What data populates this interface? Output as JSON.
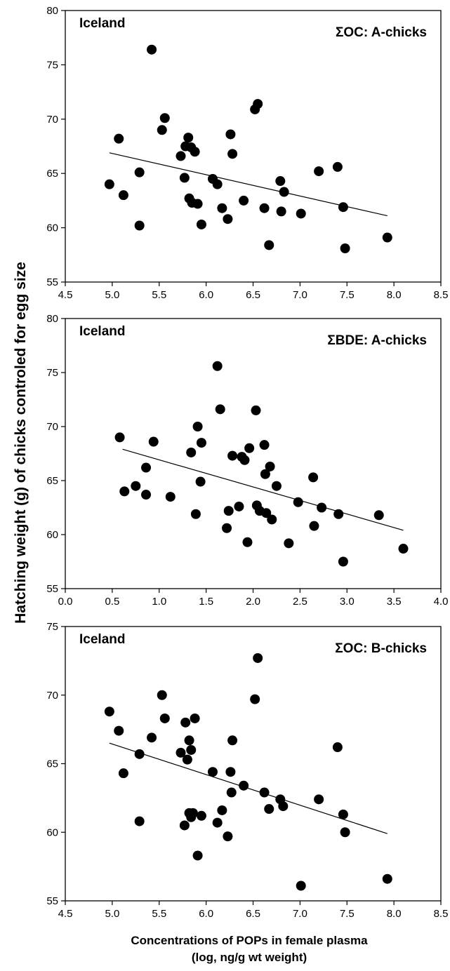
{
  "figure": {
    "ylabel": "Hatching weight (g) of chicks controled for egg size",
    "xlabel_line1": "Concentrations of POPs in female plasma",
    "xlabel_line2": "(log, ng/g wt weight)"
  },
  "chart_data": [
    {
      "type": "scatter",
      "location": "Iceland",
      "annotation": "ΣOC: A-chicks",
      "xlim": [
        4.5,
        8.5
      ],
      "ylim": [
        55,
        80
      ],
      "xticks": [
        "4.5",
        "5.0",
        "5.5",
        "6.0",
        "6.5",
        "7.0",
        "7.5",
        "8.0",
        "8.5"
      ],
      "yticks": [
        "55",
        "60",
        "65",
        "70",
        "75",
        "80"
      ],
      "fit_line": [
        [
          4.97,
          66.9
        ],
        [
          7.93,
          61.1
        ]
      ],
      "points": [
        [
          4.97,
          64.0
        ],
        [
          5.07,
          68.2
        ],
        [
          5.12,
          63.0
        ],
        [
          5.29,
          65.1
        ],
        [
          5.29,
          60.2
        ],
        [
          5.42,
          76.4
        ],
        [
          5.53,
          69.0
        ],
        [
          5.56,
          70.1
        ],
        [
          5.73,
          66.6
        ],
        [
          5.77,
          64.6
        ],
        [
          5.78,
          67.5
        ],
        [
          5.81,
          68.3
        ],
        [
          5.82,
          62.7
        ],
        [
          5.84,
          67.4
        ],
        [
          5.85,
          62.3
        ],
        [
          5.88,
          67.0
        ],
        [
          5.91,
          62.2
        ],
        [
          5.95,
          60.3
        ],
        [
          6.07,
          64.5
        ],
        [
          6.12,
          64.0
        ],
        [
          6.17,
          61.8
        ],
        [
          6.23,
          60.8
        ],
        [
          6.26,
          68.6
        ],
        [
          6.28,
          66.8
        ],
        [
          6.4,
          62.5
        ],
        [
          6.52,
          70.9
        ],
        [
          6.55,
          71.4
        ],
        [
          6.62,
          61.8
        ],
        [
          6.67,
          58.4
        ],
        [
          6.79,
          64.3
        ],
        [
          6.8,
          61.5
        ],
        [
          6.83,
          63.3
        ],
        [
          7.01,
          61.3
        ],
        [
          7.2,
          65.2
        ],
        [
          7.4,
          65.6
        ],
        [
          7.46,
          61.9
        ],
        [
          7.48,
          58.1
        ],
        [
          7.93,
          59.1
        ]
      ]
    },
    {
      "type": "scatter",
      "location": "Iceland",
      "annotation": "ΣBDE: A-chicks",
      "xlim": [
        0.0,
        4.0
      ],
      "ylim": [
        55,
        80
      ],
      "xticks": [
        "0.0",
        "0.5",
        "1.0",
        "1.5",
        "2.0",
        "2.5",
        "3.0",
        "3.5",
        "4.0"
      ],
      "yticks": [
        "55",
        "60",
        "65",
        "70",
        "75",
        "80"
      ],
      "fit_line": [
        [
          0.61,
          67.9
        ],
        [
          3.6,
          60.4
        ]
      ],
      "points": [
        [
          0.58,
          69.0
        ],
        [
          0.63,
          64.0
        ],
        [
          0.75,
          64.5
        ],
        [
          0.86,
          63.7
        ],
        [
          0.86,
          66.2
        ],
        [
          0.94,
          68.6
        ],
        [
          1.12,
          63.5
        ],
        [
          1.34,
          67.6
        ],
        [
          1.39,
          61.9
        ],
        [
          1.41,
          70.0
        ],
        [
          1.44,
          64.9
        ],
        [
          1.45,
          68.5
        ],
        [
          1.62,
          75.6
        ],
        [
          1.65,
          71.6
        ],
        [
          1.72,
          60.6
        ],
        [
          1.74,
          62.2
        ],
        [
          1.78,
          67.3
        ],
        [
          1.85,
          62.6
        ],
        [
          1.88,
          67.2
        ],
        [
          1.91,
          66.9
        ],
        [
          1.94,
          59.3
        ],
        [
          1.96,
          68.0
        ],
        [
          2.03,
          71.5
        ],
        [
          2.04,
          62.7
        ],
        [
          2.07,
          62.2
        ],
        [
          2.12,
          68.3
        ],
        [
          2.13,
          65.6
        ],
        [
          2.14,
          62.0
        ],
        [
          2.18,
          66.3
        ],
        [
          2.2,
          61.4
        ],
        [
          2.25,
          64.5
        ],
        [
          2.38,
          59.2
        ],
        [
          2.48,
          63.0
        ],
        [
          2.64,
          65.3
        ],
        [
          2.65,
          60.8
        ],
        [
          2.73,
          62.5
        ],
        [
          2.91,
          61.9
        ],
        [
          2.96,
          57.5
        ],
        [
          3.34,
          61.8
        ],
        [
          3.6,
          58.7
        ]
      ]
    },
    {
      "type": "scatter",
      "location": "Iceland",
      "annotation": "ΣOC: B-chicks",
      "xlim": [
        4.5,
        8.5
      ],
      "ylim": [
        55,
        75
      ],
      "xticks": [
        "4.5",
        "5.0",
        "5.5",
        "6.0",
        "6.5",
        "7.0",
        "7.5",
        "8.0",
        "8.5"
      ],
      "yticks": [
        "55",
        "60",
        "65",
        "70",
        "75"
      ],
      "fit_line": [
        [
          4.97,
          66.5
        ],
        [
          7.93,
          59.9
        ]
      ],
      "points": [
        [
          4.97,
          68.8
        ],
        [
          5.07,
          67.4
        ],
        [
          5.12,
          64.3
        ],
        [
          5.29,
          65.7
        ],
        [
          5.29,
          60.8
        ],
        [
          5.42,
          66.9
        ],
        [
          5.53,
          70.0
        ],
        [
          5.56,
          68.3
        ],
        [
          5.73,
          65.8
        ],
        [
          5.77,
          60.5
        ],
        [
          5.78,
          68.0
        ],
        [
          5.8,
          65.3
        ],
        [
          5.82,
          66.7
        ],
        [
          5.82,
          61.4
        ],
        [
          5.84,
          66.0
        ],
        [
          5.84,
          61.1
        ],
        [
          5.86,
          61.4
        ],
        [
          5.88,
          68.3
        ],
        [
          5.91,
          58.3
        ],
        [
          5.95,
          61.2
        ],
        [
          6.07,
          64.4
        ],
        [
          6.12,
          60.7
        ],
        [
          6.17,
          61.6
        ],
        [
          6.23,
          59.7
        ],
        [
          6.26,
          64.4
        ],
        [
          6.27,
          62.9
        ],
        [
          6.28,
          66.7
        ],
        [
          6.4,
          63.4
        ],
        [
          6.52,
          69.7
        ],
        [
          6.55,
          72.7
        ],
        [
          6.62,
          62.9
        ],
        [
          6.67,
          61.7
        ],
        [
          6.79,
          62.4
        ],
        [
          6.82,
          61.9
        ],
        [
          7.01,
          56.1
        ],
        [
          7.2,
          62.4
        ],
        [
          7.4,
          66.2
        ],
        [
          7.46,
          61.3
        ],
        [
          7.48,
          60.0
        ],
        [
          7.93,
          56.6
        ]
      ]
    }
  ]
}
